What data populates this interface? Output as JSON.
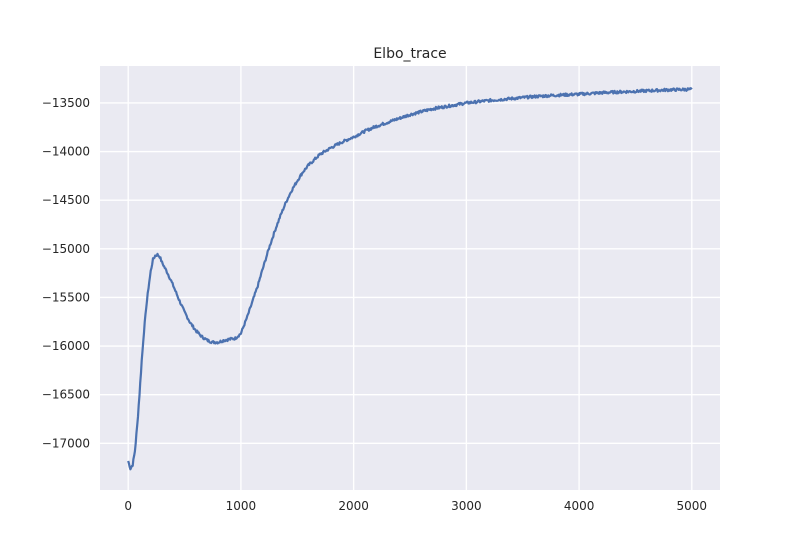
{
  "chart_data": {
    "type": "line",
    "title": "Elbo_trace",
    "xlabel": "",
    "ylabel": "",
    "xlim": [
      -250,
      5250
    ],
    "ylim": [
      -17480,
      -13120
    ],
    "xticks": [
      0,
      1000,
      2000,
      3000,
      4000,
      5000
    ],
    "yticks": [
      -17000,
      -16500,
      -16000,
      -15500,
      -15000,
      -14500,
      -14000,
      -13500
    ],
    "grid": true,
    "style": {
      "plot_bg": "#eaeaf2",
      "grid_color": "#ffffff",
      "line_color": "#4c72b0"
    },
    "series": [
      {
        "name": "",
        "points": [
          [
            0,
            -17180
          ],
          [
            20,
            -17260
          ],
          [
            40,
            -17220
          ],
          [
            60,
            -17080
          ],
          [
            80,
            -16820
          ],
          [
            100,
            -16500
          ],
          [
            120,
            -16150
          ],
          [
            140,
            -15850
          ],
          [
            160,
            -15600
          ],
          [
            180,
            -15400
          ],
          [
            200,
            -15230
          ],
          [
            220,
            -15110
          ],
          [
            240,
            -15070
          ],
          [
            260,
            -15060
          ],
          [
            280,
            -15080
          ],
          [
            300,
            -15140
          ],
          [
            350,
            -15250
          ],
          [
            400,
            -15380
          ],
          [
            450,
            -15520
          ],
          [
            500,
            -15650
          ],
          [
            550,
            -15760
          ],
          [
            600,
            -15840
          ],
          [
            650,
            -15900
          ],
          [
            700,
            -15940
          ],
          [
            750,
            -15960
          ],
          [
            800,
            -15960
          ],
          [
            850,
            -15940
          ],
          [
            900,
            -15930
          ],
          [
            950,
            -15920
          ],
          [
            1000,
            -15870
          ],
          [
            1050,
            -15720
          ],
          [
            1100,
            -15550
          ],
          [
            1150,
            -15380
          ],
          [
            1200,
            -15180
          ],
          [
            1250,
            -14990
          ],
          [
            1300,
            -14820
          ],
          [
            1350,
            -14660
          ],
          [
            1400,
            -14520
          ],
          [
            1450,
            -14400
          ],
          [
            1500,
            -14300
          ],
          [
            1550,
            -14210
          ],
          [
            1600,
            -14140
          ],
          [
            1700,
            -14030
          ],
          [
            1800,
            -13960
          ],
          [
            1900,
            -13900
          ],
          [
            2000,
            -13850
          ],
          [
            2100,
            -13790
          ],
          [
            2200,
            -13740
          ],
          [
            2300,
            -13700
          ],
          [
            2400,
            -13660
          ],
          [
            2500,
            -13620
          ],
          [
            2600,
            -13590
          ],
          [
            2700,
            -13560
          ],
          [
            2800,
            -13540
          ],
          [
            2900,
            -13520
          ],
          [
            3000,
            -13500
          ],
          [
            3200,
            -13475
          ],
          [
            3400,
            -13455
          ],
          [
            3600,
            -13435
          ],
          [
            3800,
            -13420
          ],
          [
            4000,
            -13410
          ],
          [
            4200,
            -13395
          ],
          [
            4400,
            -13385
          ],
          [
            4600,
            -13375
          ],
          [
            4800,
            -13365
          ],
          [
            5000,
            -13360
          ]
        ]
      }
    ]
  }
}
